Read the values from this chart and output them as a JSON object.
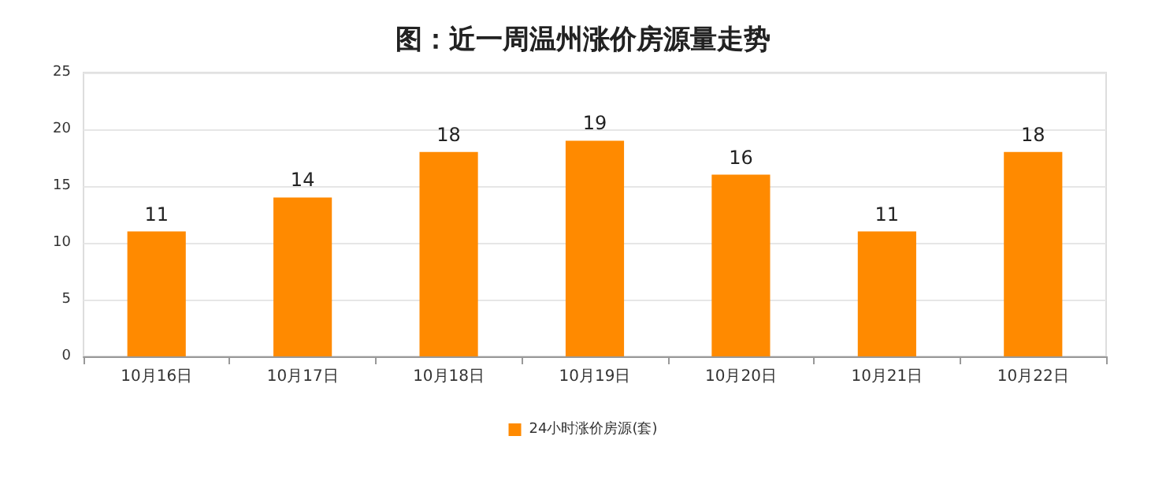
{
  "chart_data": {
    "type": "bar",
    "title": "图：近一周温州涨价房源量走势",
    "categories": [
      "10月16日",
      "10月17日",
      "10月18日",
      "10月19日",
      "10月20日",
      "10月21日",
      "10月22日"
    ],
    "series": [
      {
        "name": "24小时涨价房源(套)",
        "color": "#ff8a00",
        "values": [
          11,
          14,
          18,
          19,
          16,
          11,
          18
        ]
      }
    ],
    "ylim": [
      0,
      25
    ],
    "yticks": [
      0,
      5,
      10,
      15,
      20,
      25
    ],
    "grid": "y",
    "legend": "bottom",
    "data_labels": true
  }
}
